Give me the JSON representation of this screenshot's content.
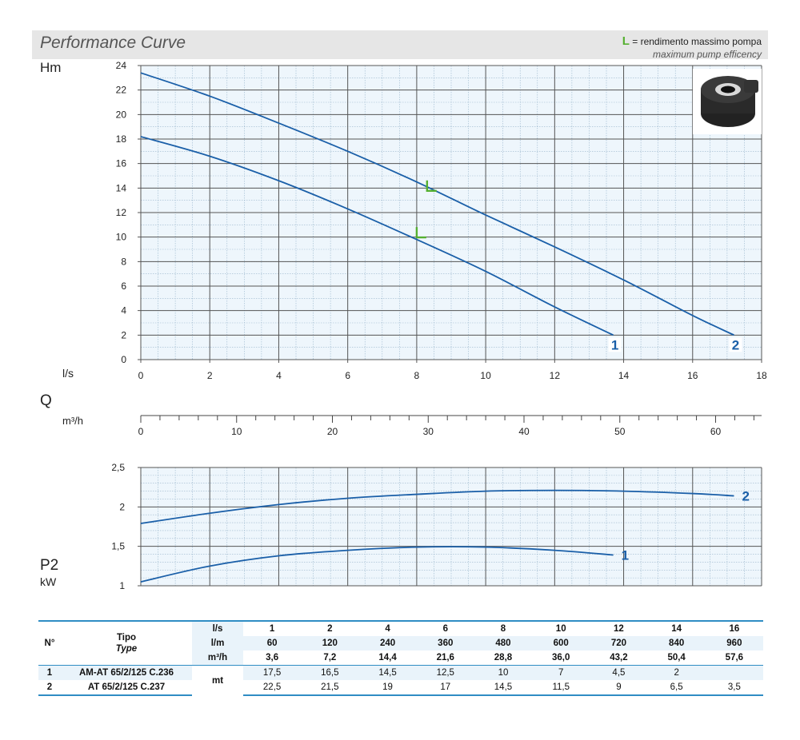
{
  "header": {
    "title": "Performance Curve",
    "legend_mark": "L",
    "legend_line1": "= rendimento massimo pompa",
    "legend_line2": "maximum pump efficency"
  },
  "axis_labels": {
    "head_label": "Hm",
    "flow_ls_label": "l/s",
    "flow_q_label": "Q",
    "flow_m3h_label": "m³/h",
    "power_label": "P2",
    "power_unit": "kW"
  },
  "colors": {
    "curve": "#1a5fa8",
    "grid_major": "#555555",
    "grid_minor": "#9ab6cc",
    "plot_bg": "#eef6fc",
    "efficiency_mark": "#55b030",
    "table_accent": "#2f8dc4"
  },
  "chart_data": [
    {
      "type": "line",
      "name": "head",
      "x_unit": "l/s",
      "y_unit": "Hm",
      "xlim": [
        0,
        18
      ],
      "ylim": [
        0,
        24
      ],
      "x_ticks": [
        0,
        2,
        4,
        6,
        8,
        10,
        12,
        14,
        16,
        18
      ],
      "y_ticks": [
        0,
        2,
        4,
        6,
        8,
        10,
        12,
        14,
        16,
        18,
        20,
        22,
        24
      ],
      "grid": true,
      "series": [
        {
          "name": "1",
          "x": [
            0,
            2,
            4,
            6,
            8,
            10,
            12,
            13.7
          ],
          "y": [
            18.2,
            16.6,
            14.6,
            12.3,
            9.8,
            7.2,
            4.3,
            2.0
          ]
        },
        {
          "name": "2",
          "x": [
            0,
            2,
            4,
            6,
            8,
            10,
            12,
            14,
            16,
            17.2
          ],
          "y": [
            23.4,
            21.5,
            19.3,
            17.0,
            14.5,
            11.8,
            9.2,
            6.5,
            3.6,
            2.0
          ]
        }
      ],
      "efficiency_markers": [
        {
          "series": "1",
          "x": 8.0,
          "y": 10.3
        },
        {
          "series": "2",
          "x": 8.3,
          "y": 14.1
        }
      ]
    },
    {
      "type": "axis",
      "name": "flow-m3h-scale",
      "xlim": [
        0,
        64.8
      ],
      "ticks": [
        0,
        10,
        20,
        30,
        40,
        50,
        60
      ]
    },
    {
      "type": "line",
      "name": "power",
      "x_unit": "l/s",
      "y_unit": "kW",
      "xlim": [
        0,
        18
      ],
      "ylim": [
        1,
        2.5
      ],
      "y_ticks": [
        1,
        1.5,
        2,
        2.5
      ],
      "y_tick_labels": [
        "1",
        "1,5",
        "2",
        "2,5"
      ],
      "grid": true,
      "series": [
        {
          "name": "1",
          "x": [
            0,
            2,
            4,
            6,
            8,
            10,
            12,
            13.7
          ],
          "y": [
            1.05,
            1.25,
            1.38,
            1.45,
            1.49,
            1.49,
            1.45,
            1.39
          ]
        },
        {
          "name": "2",
          "x": [
            0,
            2,
            4,
            6,
            8,
            10,
            12,
            14,
            16,
            17.2
          ],
          "y": [
            1.79,
            1.92,
            2.03,
            2.11,
            2.16,
            2.2,
            2.21,
            2.2,
            2.17,
            2.14
          ]
        }
      ]
    }
  ],
  "table": {
    "no_header": "N°",
    "tipo_header": "Tipo",
    "type_header": "Type",
    "units": [
      "l/s",
      "l/m",
      "m³/h"
    ],
    "ls": [
      "1",
      "2",
      "4",
      "6",
      "8",
      "10",
      "12",
      "14",
      "16"
    ],
    "lm": [
      "60",
      "120",
      "240",
      "360",
      "480",
      "600",
      "720",
      "840",
      "960"
    ],
    "m3h": [
      "3,6",
      "7,2",
      "14,4",
      "21,6",
      "28,8",
      "36,0",
      "43,2",
      "50,4",
      "57,6"
    ],
    "head_unit": "mt",
    "rows": [
      {
        "no": "1",
        "model": "AM-AT 65/2/125 C.236",
        "values": [
          "17,5",
          "16,5",
          "14,5",
          "12,5",
          "10",
          "7",
          "4,5",
          "2",
          ""
        ]
      },
      {
        "no": "2",
        "model": "AT 65/2/125 C.237",
        "values": [
          "22,5",
          "21,5",
          "19",
          "17",
          "14,5",
          "11,5",
          "9",
          "6,5",
          "3,5"
        ]
      }
    ]
  }
}
